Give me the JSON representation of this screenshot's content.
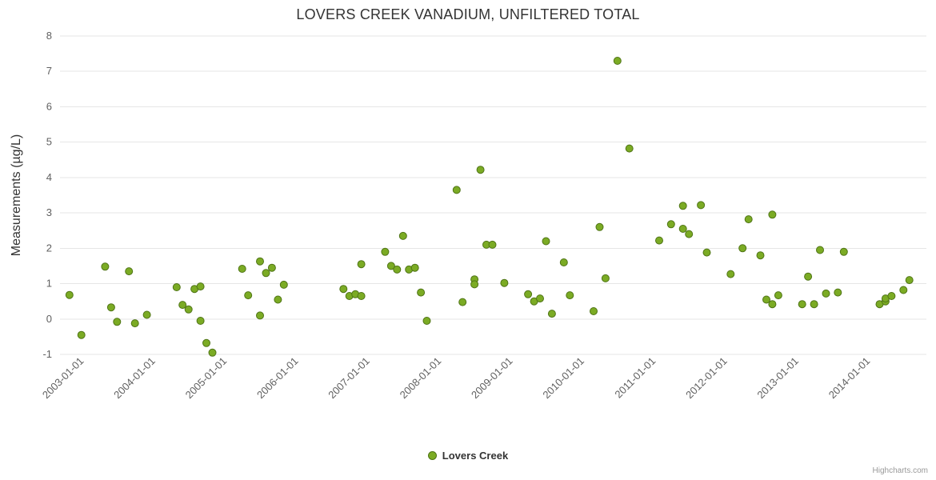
{
  "chart_data": {
    "type": "scatter",
    "title": "LOVERS CREEK VANADIUM, UNFILTERED TOTAL",
    "ylabel": "Measurements (µg/L)",
    "ylim": [
      -1,
      8
    ],
    "y_ticks": [
      8,
      7,
      6,
      5,
      4,
      3,
      2,
      1,
      0,
      -1
    ],
    "x_tick_labels": [
      "2003-01-01",
      "2004-01-01",
      "2005-01-01",
      "2006-01-01",
      "2007-01-01",
      "2008-01-01",
      "2009-01-01",
      "2010-01-01",
      "2011-01-01",
      "2012-01-01",
      "2013-01-01",
      "2014-01-01"
    ],
    "xlim": [
      2002.66,
      2014.78
    ],
    "grid": true,
    "gridline_color": "#e6e6e6",
    "legend_position": "bottom-center",
    "credits": "Highcharts.com",
    "series": [
      {
        "name": "Lovers Creek",
        "color": "#7bab24",
        "border_color": "#4f7416",
        "points": [
          [
            "2002-10",
            0.68
          ],
          [
            "2002-12",
            -0.45
          ],
          [
            "2003-04",
            1.48
          ],
          [
            "2003-05",
            0.33
          ],
          [
            "2003-06",
            -0.08
          ],
          [
            "2003-08",
            1.35
          ],
          [
            "2003-09",
            -0.12
          ],
          [
            "2003-11",
            0.12
          ],
          [
            "2004-04",
            0.9
          ],
          [
            "2004-05",
            0.4
          ],
          [
            "2004-06",
            0.27
          ],
          [
            "2004-07",
            0.85
          ],
          [
            "2004-08",
            0.92
          ],
          [
            "2004-08",
            -0.05
          ],
          [
            "2004-09",
            -0.68
          ],
          [
            "2004-10",
            -0.95
          ],
          [
            "2005-03",
            1.42
          ],
          [
            "2005-04",
            0.67
          ],
          [
            "2005-06",
            0.1
          ],
          [
            "2005-06",
            1.63
          ],
          [
            "2005-07",
            1.3
          ],
          [
            "2005-08",
            1.45
          ],
          [
            "2005-09",
            0.55
          ],
          [
            "2005-10",
            0.97
          ],
          [
            "2006-08",
            0.85
          ],
          [
            "2006-09",
            0.65
          ],
          [
            "2006-10",
            0.7
          ],
          [
            "2006-11",
            0.65
          ],
          [
            "2006-11",
            1.55
          ],
          [
            "2007-03",
            1.9
          ],
          [
            "2007-04",
            1.5
          ],
          [
            "2007-05",
            1.4
          ],
          [
            "2007-06",
            2.35
          ],
          [
            "2007-07",
            1.4
          ],
          [
            "2007-08",
            1.45
          ],
          [
            "2007-09",
            0.75
          ],
          [
            "2007-10",
            -0.05
          ],
          [
            "2008-03",
            3.65
          ],
          [
            "2008-04",
            0.48
          ],
          [
            "2008-06",
            1.12
          ],
          [
            "2008-06",
            0.98
          ],
          [
            "2008-07",
            4.22
          ],
          [
            "2008-08",
            2.1
          ],
          [
            "2008-09",
            2.1
          ],
          [
            "2008-11",
            1.02
          ],
          [
            "2009-03",
            0.7
          ],
          [
            "2009-04",
            0.5
          ],
          [
            "2009-05",
            0.58
          ],
          [
            "2009-06",
            2.2
          ],
          [
            "2009-07",
            0.15
          ],
          [
            "2009-09",
            1.6
          ],
          [
            "2009-10",
            0.67
          ],
          [
            "2010-02",
            0.22
          ],
          [
            "2010-03",
            2.6
          ],
          [
            "2010-04",
            1.15
          ],
          [
            "2010-06",
            7.3
          ],
          [
            "2010-08",
            4.82
          ],
          [
            "2011-01",
            2.22
          ],
          [
            "2011-03",
            2.68
          ],
          [
            "2011-05",
            3.2
          ],
          [
            "2011-05",
            2.55
          ],
          [
            "2011-06",
            2.4
          ],
          [
            "2011-08",
            3.22
          ],
          [
            "2011-09",
            1.88
          ],
          [
            "2012-01",
            1.27
          ],
          [
            "2012-03",
            2.0
          ],
          [
            "2012-04",
            2.82
          ],
          [
            "2012-06",
            1.8
          ],
          [
            "2012-07",
            0.55
          ],
          [
            "2012-08",
            2.95
          ],
          [
            "2012-08",
            0.42
          ],
          [
            "2012-09",
            0.67
          ],
          [
            "2013-01",
            0.42
          ],
          [
            "2013-02",
            1.2
          ],
          [
            "2013-03",
            0.42
          ],
          [
            "2013-04",
            1.95
          ],
          [
            "2013-05",
            0.72
          ],
          [
            "2013-07",
            0.75
          ],
          [
            "2013-08",
            1.9
          ],
          [
            "2014-02",
            0.42
          ],
          [
            "2014-03",
            0.5
          ],
          [
            "2014-03",
            0.58
          ],
          [
            "2014-04",
            0.65
          ],
          [
            "2014-06",
            0.82
          ],
          [
            "2014-07",
            1.1
          ]
        ]
      }
    ]
  }
}
